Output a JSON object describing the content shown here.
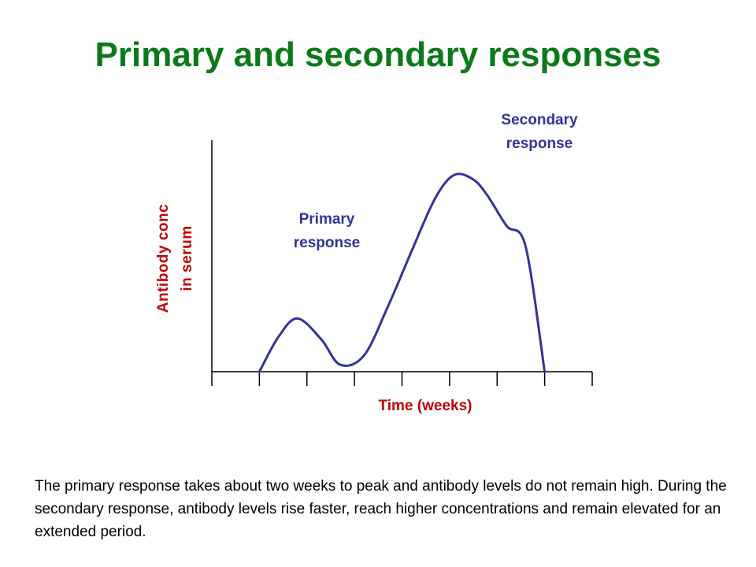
{
  "title": "Primary and secondary responses",
  "colors": {
    "title": "#0b7a1a",
    "axis_label": "#c00000",
    "annotation": "#333399",
    "curve": "#333399",
    "axis": "#000000"
  },
  "caption": "The primary response takes about two weeks to peak and antibody levels do not remain high. During the secondary response, antibody levels rise faster, reach higher concentrations and remain elevated for an extended period.",
  "chart_data": {
    "type": "line",
    "title": "",
    "xlabel": "Time (weeks)",
    "ylabel_lines": [
      "Antibody conc",
      "in serum"
    ],
    "x_tick_count": 9,
    "xlim": [
      0,
      8
    ],
    "ylim": [
      0,
      10
    ],
    "x_ticks_labeled": false,
    "y_ticks_labeled": false,
    "grid": false,
    "legend": "none",
    "series": [
      {
        "x": [
          1.0,
          1.4,
          1.8,
          2.3,
          2.7,
          3.2,
          3.7,
          4.2,
          4.7,
          5.1,
          5.5,
          5.8,
          6.2,
          6.6,
          7.0
        ],
        "y": [
          0,
          1.5,
          2.3,
          1.4,
          0.3,
          0.7,
          2.8,
          5.2,
          7.5,
          8.5,
          8.3,
          7.6,
          6.3,
          5.4,
          0
        ]
      }
    ],
    "annotations": [
      {
        "lines": [
          "Primary",
          "response"
        ]
      },
      {
        "lines": [
          "Secondary",
          "response"
        ]
      }
    ]
  }
}
